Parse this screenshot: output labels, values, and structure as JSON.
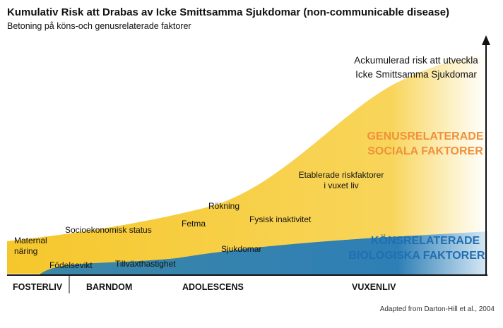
{
  "header": {
    "title": "Kumulativ Risk att Drabas av Icke Smittsamma Sjukdomar  (non-communicable disease)",
    "subtitle": "Betoning på köns-och genusrelaterade faktorer"
  },
  "axis_label": [
    "Ackumulerad risk att utveckla",
    "Icke Smittsamma Sjukdomar"
  ],
  "regions": [
    {
      "label": [
        "GENUSRELATERADE",
        "SOCIALA FAKTORER"
      ]
    },
    {
      "label": [
        "KÖNSRELATERADE",
        "BIOLOGISKA FAKTORER"
      ]
    }
  ],
  "factors": [
    {
      "label": [
        "Maternal",
        "näring"
      ]
    },
    {
      "label": [
        "Födelsevikt"
      ]
    },
    {
      "label": [
        "Tillväxthastighet"
      ]
    },
    {
      "label": [
        "Socioekonomisk status"
      ]
    },
    {
      "label": [
        "Fetma"
      ]
    },
    {
      "label": [
        "Rökning"
      ]
    },
    {
      "label": [
        "Fysisk inaktivitet"
      ]
    },
    {
      "label": [
        "Sjukdomar"
      ]
    },
    {
      "label": [
        "Etablerade riskfaktorer",
        "i vuxet liv"
      ]
    }
  ],
  "stages": [
    "FOSTERLIV",
    "BARNDOM",
    "ADOLESCENS",
    "VUXENLIV"
  ],
  "source": "Adapted from Darton-Hill et al., 2004"
}
